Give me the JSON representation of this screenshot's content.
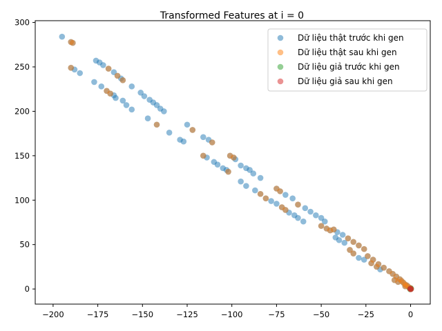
{
  "chart_data": {
    "type": "scatter",
    "title": "Transformed Features at i = 0",
    "xlabel": "",
    "ylabel": "",
    "xlim": [
      -210,
      11
    ],
    "ylim": [
      -17,
      302
    ],
    "xticks": [
      -200,
      -175,
      -150,
      -125,
      -100,
      -75,
      -50,
      -25,
      0
    ],
    "yticks": [
      0,
      50,
      100,
      150,
      200,
      250,
      300
    ],
    "grid": false,
    "legend_position": "top-right",
    "series": [
      {
        "name": "Dữ liệu thật trước khi gen",
        "color": "#1f77b4",
        "points": [
          [
            -195,
            284
          ],
          [
            -190,
            278
          ],
          [
            -189,
            277
          ],
          [
            -190,
            249
          ],
          [
            -188,
            247
          ],
          [
            -185,
            243
          ],
          [
            -176,
            257
          ],
          [
            -174,
            255
          ],
          [
            -172,
            252
          ],
          [
            -169,
            248
          ],
          [
            -166,
            244
          ],
          [
            -164,
            240
          ],
          [
            -162,
            237
          ],
          [
            -161,
            235
          ],
          [
            -177,
            233
          ],
          [
            -173,
            228
          ],
          [
            -170,
            223
          ],
          [
            -168,
            220
          ],
          [
            -166,
            218
          ],
          [
            -165,
            215
          ],
          [
            -161,
            212
          ],
          [
            -159,
            207
          ],
          [
            -156,
            202
          ],
          [
            -156,
            228
          ],
          [
            -151,
            221
          ],
          [
            -149,
            217
          ],
          [
            -146,
            213
          ],
          [
            -144,
            210
          ],
          [
            -142,
            207
          ],
          [
            -140,
            203
          ],
          [
            -138,
            200
          ],
          [
            -147,
            192
          ],
          [
            -142,
            185
          ],
          [
            -135,
            176
          ],
          [
            -129,
            168
          ],
          [
            -127,
            166
          ],
          [
            -125,
            185
          ],
          [
            -122,
            179
          ],
          [
            -116,
            171
          ],
          [
            -113,
            168
          ],
          [
            -111,
            165
          ],
          [
            -116,
            150
          ],
          [
            -114,
            148
          ],
          [
            -110,
            143
          ],
          [
            -108,
            140
          ],
          [
            -105,
            136
          ],
          [
            -103,
            134
          ],
          [
            -102,
            132
          ],
          [
            -101,
            150
          ],
          [
            -99,
            148
          ],
          [
            -98,
            146
          ],
          [
            -95,
            139
          ],
          [
            -92,
            136
          ],
          [
            -90,
            134
          ],
          [
            -88,
            130
          ],
          [
            -84,
            125
          ],
          [
            -95,
            121
          ],
          [
            -92,
            116
          ],
          [
            -87,
            111
          ],
          [
            -84,
            107
          ],
          [
            -81,
            102
          ],
          [
            -78,
            99
          ],
          [
            -75,
            96
          ],
          [
            -72,
            92
          ],
          [
            -70,
            89
          ],
          [
            -68,
            86
          ],
          [
            -65,
            83
          ],
          [
            -63,
            80
          ],
          [
            -60,
            76
          ],
          [
            -75,
            113
          ],
          [
            -73,
            110
          ],
          [
            -70,
            106
          ],
          [
            -66,
            102
          ],
          [
            -63,
            95
          ],
          [
            -59,
            91
          ],
          [
            -56,
            87
          ],
          [
            -53,
            83
          ],
          [
            -50,
            80
          ],
          [
            -48,
            76
          ],
          [
            -50,
            71
          ],
          [
            -47,
            68
          ],
          [
            -45,
            66
          ],
          [
            -43,
            67
          ],
          [
            -41,
            64
          ],
          [
            -38,
            61
          ],
          [
            -35,
            57
          ],
          [
            -32,
            53
          ],
          [
            -29,
            49
          ],
          [
            -26,
            45
          ],
          [
            -42,
            58
          ],
          [
            -40,
            55
          ],
          [
            -37,
            52
          ],
          [
            -34,
            44
          ],
          [
            -32,
            40
          ],
          [
            -29,
            35
          ],
          [
            -26,
            33
          ],
          [
            -22,
            29
          ],
          [
            -19,
            25
          ],
          [
            -17,
            22
          ],
          [
            -24,
            37
          ],
          [
            -21,
            33
          ],
          [
            -18,
            28
          ],
          [
            -15,
            24
          ],
          [
            -12,
            20
          ],
          [
            -10,
            17
          ],
          [
            -8,
            14
          ],
          [
            -6,
            11
          ],
          [
            -5,
            9
          ],
          [
            -4,
            7
          ],
          [
            -3,
            5
          ],
          [
            -2,
            4
          ],
          [
            -1,
            2
          ],
          [
            0,
            1
          ],
          [
            -9,
            10
          ],
          [
            -7,
            8
          ],
          [
            -3,
            3
          ]
        ]
      },
      {
        "name": "Dữ liệu thật sau khi gen",
        "color": "#ff7f0e",
        "points": [
          [
            -190,
            278
          ],
          [
            -189,
            277
          ],
          [
            -190,
            249
          ],
          [
            -169,
            248
          ],
          [
            -164,
            240
          ],
          [
            -161,
            235
          ],
          [
            -170,
            223
          ],
          [
            -168,
            220
          ],
          [
            -142,
            185
          ],
          [
            -122,
            179
          ],
          [
            -111,
            165
          ],
          [
            -116,
            150
          ],
          [
            -101,
            150
          ],
          [
            -99,
            148
          ],
          [
            -102,
            132
          ],
          [
            -84,
            107
          ],
          [
            -81,
            102
          ],
          [
            -75,
            113
          ],
          [
            -73,
            110
          ],
          [
            -72,
            92
          ],
          [
            -70,
            89
          ],
          [
            -63,
            95
          ],
          [
            -50,
            71
          ],
          [
            -47,
            68
          ],
          [
            -45,
            66
          ],
          [
            -43,
            67
          ],
          [
            -35,
            57
          ],
          [
            -32,
            53
          ],
          [
            -29,
            49
          ],
          [
            -26,
            45
          ],
          [
            -34,
            44
          ],
          [
            -32,
            40
          ],
          [
            -22,
            29
          ],
          [
            -24,
            37
          ],
          [
            -21,
            33
          ],
          [
            -19,
            25
          ],
          [
            -18,
            28
          ],
          [
            -15,
            24
          ],
          [
            -12,
            20
          ],
          [
            -10,
            17
          ],
          [
            -8,
            14
          ],
          [
            -6,
            11
          ],
          [
            -5,
            9
          ],
          [
            -4,
            7
          ],
          [
            -3,
            5
          ],
          [
            -2,
            4
          ],
          [
            -1,
            2
          ],
          [
            0,
            1
          ],
          [
            -9,
            10
          ],
          [
            -7,
            8
          ],
          [
            -3,
            3
          ]
        ]
      },
      {
        "name": "Dữ liệu giả trước khi gen",
        "color": "#2ca02c",
        "points": [
          [
            0,
            0
          ],
          [
            0.3,
            0.4
          ],
          [
            -0.3,
            -0.3
          ]
        ]
      },
      {
        "name": "Dữ liệu giả sau khi gen",
        "color": "#d62728",
        "points": [
          [
            0,
            0
          ],
          [
            0.2,
            -0.2
          ],
          [
            -0.2,
            0.3
          ]
        ]
      }
    ]
  }
}
